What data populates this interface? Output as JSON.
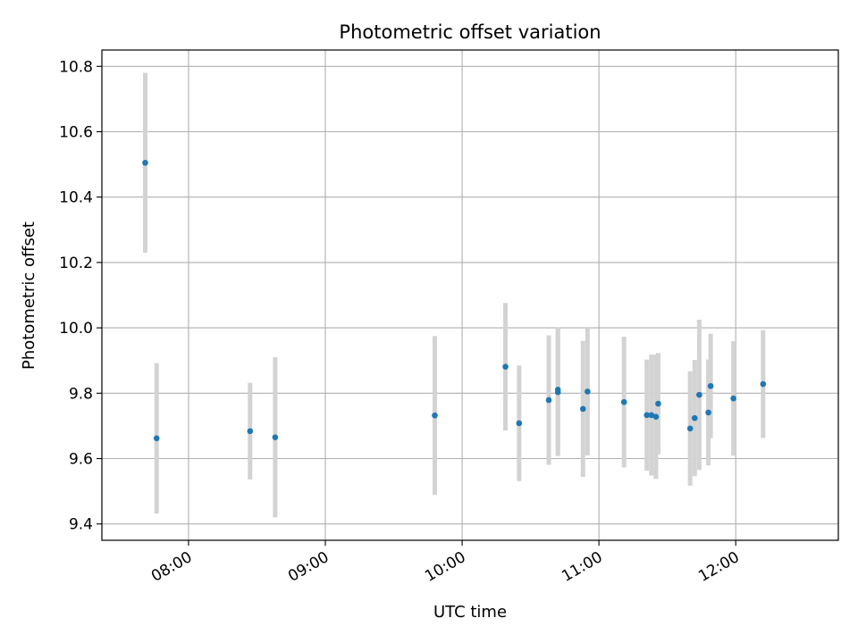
{
  "chart_data": {
    "type": "scatter",
    "title": "Photometric offset variation",
    "xlabel": "UTC time",
    "ylabel": "Photometric offset",
    "xlim": [
      "07:22",
      "12:45"
    ],
    "ylim": [
      9.35,
      10.85
    ],
    "x_ticks": [
      "08:00",
      "09:00",
      "10:00",
      "11:00",
      "12:00"
    ],
    "y_ticks": [
      9.4,
      9.6,
      9.8,
      10.0,
      10.2,
      10.4,
      10.6,
      10.8
    ],
    "y_tick_labels": [
      "9.4",
      "9.6",
      "9.8",
      "10.0",
      "10.2",
      "10.4",
      "10.6",
      "10.8"
    ],
    "grid": true,
    "series": [
      {
        "marker_color": "#1f77b4",
        "errorbar_color": "#d3d3d3",
        "points": [
          {
            "x": "07:41",
            "y": 10.505,
            "err": 0.275
          },
          {
            "x": "07:46",
            "y": 9.662,
            "err": 0.23
          },
          {
            "x": "08:27",
            "y": 9.684,
            "err": 0.148
          },
          {
            "x": "08:38",
            "y": 9.665,
            "err": 0.245
          },
          {
            "x": "09:48",
            "y": 9.732,
            "err": 0.243
          },
          {
            "x": "10:19",
            "y": 9.881,
            "err": 0.195
          },
          {
            "x": "10:25",
            "y": 9.708,
            "err": 0.177
          },
          {
            "x": "10:38",
            "y": 9.779,
            "err": 0.198
          },
          {
            "x": "10:42",
            "y": 9.803,
            "err": 0.195
          },
          {
            "x": "10:42",
            "y": 9.811,
            "err": 0.19
          },
          {
            "x": "10:53",
            "y": 9.752,
            "err": 0.208
          },
          {
            "x": "10:55",
            "y": 9.805,
            "err": 0.195
          },
          {
            "x": "11:11",
            "y": 9.773,
            "err": 0.2
          },
          {
            "x": "11:21",
            "y": 9.733,
            "err": 0.17
          },
          {
            "x": "11:23",
            "y": 9.733,
            "err": 0.185
          },
          {
            "x": "11:25",
            "y": 9.728,
            "err": 0.19
          },
          {
            "x": "11:26",
            "y": 9.768,
            "err": 0.155
          },
          {
            "x": "11:40",
            "y": 9.692,
            "err": 0.175
          },
          {
            "x": "11:42",
            "y": 9.724,
            "err": 0.178
          },
          {
            "x": "11:44",
            "y": 9.795,
            "err": 0.23
          },
          {
            "x": "11:48",
            "y": 9.741,
            "err": 0.162
          },
          {
            "x": "11:49",
            "y": 9.822,
            "err": 0.16
          },
          {
            "x": "11:59",
            "y": 9.784,
            "err": 0.175
          },
          {
            "x": "12:12",
            "y": 9.828,
            "err": 0.165
          }
        ]
      }
    ]
  }
}
